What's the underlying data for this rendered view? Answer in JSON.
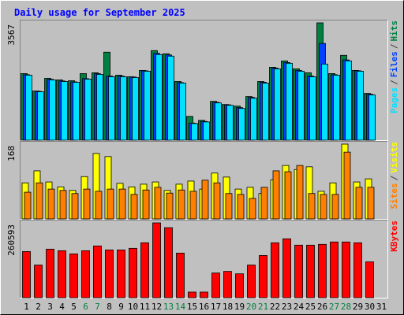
{
  "chart_data": [
    {
      "type": "bar",
      "title": "Daily usage for September 2025",
      "ylim": [
        0,
        3567
      ],
      "yticks": [
        3567
      ],
      "legend_separator": "/",
      "series": [
        {
          "name": "Hits",
          "color": "#008040",
          "values": [
            2024,
            1494,
            1880,
            1832,
            1808,
            2024,
            2049,
            2675,
            1976,
            1928,
            2121,
            2723,
            2627,
            1784,
            723,
            603,
            1181,
            1085,
            1036,
            1326,
            1784,
            2217,
            2410,
            2169,
            2049,
            3567,
            2024,
            2579,
            2121,
            1422,
            0
          ]
        },
        {
          "name": "Files",
          "color": "#0040ff",
          "values": [
            1990,
            1482,
            1850,
            1800,
            1772,
            1870,
            2020,
            1950,
            1945,
            1920,
            2110,
            2640,
            2590,
            1750,
            520,
            570,
            1150,
            1075,
            990,
            1300,
            1760,
            2190,
            2360,
            2120,
            1950,
            2940,
            1990,
            2440,
            2110,
            1395,
            0
          ]
        },
        {
          "name": "Pages",
          "color": "#00e0ff",
          "values": [
            1976,
            1470,
            1832,
            1783,
            1759,
            1856,
            2000,
            1928,
            1928,
            1904,
            2097,
            2603,
            2555,
            1735,
            506,
            554,
            1133,
            1060,
            964,
            1277,
            1735,
            2169,
            2338,
            2097,
            1928,
            2314,
            1976,
            2410,
            2097,
            1374,
            0
          ]
        }
      ]
    },
    {
      "type": "bar",
      "ylim": [
        0,
        168
      ],
      "yticks": [
        168
      ],
      "legend_separator": "/",
      "series": [
        {
          "name": "Visits",
          "color": "#ffff00",
          "values": [
            81,
            108,
            83,
            72,
            64,
            95,
            147,
            140,
            80,
            72,
            78,
            83,
            64,
            78,
            85,
            67,
            103,
            94,
            67,
            71,
            57,
            88,
            120,
            111,
            117,
            62,
            81,
            168,
            83,
            90,
            0
          ]
        },
        {
          "name": "Sites",
          "color": "#ff8000",
          "values": [
            60,
            81,
            67,
            64,
            57,
            67,
            62,
            67,
            67,
            55,
            65,
            71,
            58,
            65,
            62,
            87,
            81,
            57,
            55,
            46,
            71,
            108,
            106,
            120,
            57,
            55,
            55,
            150,
            71,
            71,
            0
          ]
        }
      ]
    },
    {
      "type": "bar",
      "ylim": [
        0,
        260593
      ],
      "yticks": [
        260593
      ],
      "categories": [
        "1",
        "2",
        "3",
        "4",
        "5",
        "6",
        "7",
        "8",
        "9",
        "10",
        "11",
        "12",
        "13",
        "14",
        "15",
        "16",
        "17",
        "18",
        "19",
        "20",
        "21",
        "22",
        "23",
        "24",
        "25",
        "26",
        "27",
        "28",
        "29",
        "30",
        "31"
      ],
      "category_colors": [
        "#000000",
        "#000000",
        "#000000",
        "#000000",
        "#000000",
        "#008040",
        "#008040",
        "#000000",
        "#000000",
        "#000000",
        "#000000",
        "#000000",
        "#008040",
        "#008040",
        "#000000",
        "#000000",
        "#000000",
        "#000000",
        "#000000",
        "#008040",
        "#008040",
        "#000000",
        "#000000",
        "#000000",
        "#000000",
        "#000000",
        "#008040",
        "#008040",
        "#000000",
        "#000000",
        "#000000"
      ],
      "series": [
        {
          "name": "KBytes",
          "color": "#ff0000",
          "values": [
            160776,
            113652,
            169092,
            163548,
            152460,
            163548,
            180180,
            166320,
            166320,
            171864,
            191268,
            260593,
            243936,
            155232,
            19404,
            19404,
            85932,
            91476,
            83160,
            113652,
            146916,
            191268,
            205128,
            182952,
            182952,
            185724,
            194040,
            194040,
            191268,
            124740,
            0
          ]
        }
      ]
    }
  ]
}
